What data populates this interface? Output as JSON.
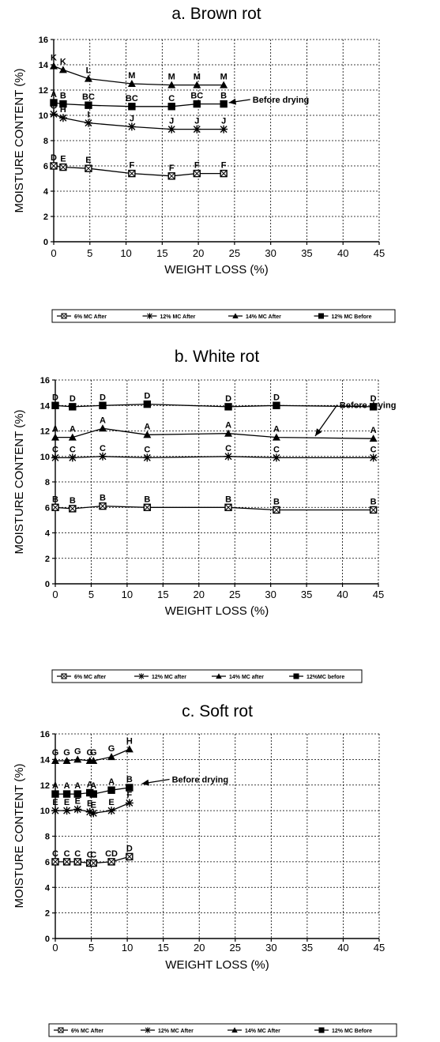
{
  "chart_data": [
    {
      "type": "line",
      "title": "a. Brown rot",
      "xlabel": "WEIGHT LOSS (%)",
      "ylabel": "MOISTURE CONTENT (%)",
      "xlim": [
        0,
        45
      ],
      "ylim": [
        0,
        16
      ],
      "xticks": [
        0,
        5,
        10,
        15,
        20,
        25,
        30,
        35,
        40,
        45
      ],
      "yticks": [
        0,
        2,
        4,
        6,
        8,
        10,
        12,
        14,
        16
      ],
      "grid": true,
      "legend_placement": "bottom",
      "series": [
        {
          "name": "6% MC After",
          "marker": "square-x",
          "x": [
            0,
            1.3,
            4.8,
            10.8,
            16.3,
            19.8,
            23.5
          ],
          "y": [
            6.0,
            5.9,
            5.8,
            5.4,
            5.2,
            5.4,
            5.4
          ],
          "labels": [
            "D",
            "E",
            "E",
            "F",
            "F",
            "F",
            "F"
          ]
        },
        {
          "name": "12% MC After",
          "marker": "asterisk",
          "x": [
            0,
            1.3,
            4.8,
            10.8,
            16.3,
            19.8,
            23.5
          ],
          "y": [
            10.1,
            9.8,
            9.4,
            9.1,
            8.9,
            8.9,
            8.9
          ],
          "labels": [
            "G",
            "H",
            "I",
            "J",
            "J",
            "J",
            "J"
          ]
        },
        {
          "name": "14% MC After",
          "marker": "triangle",
          "x": [
            0,
            1.3,
            4.8,
            10.8,
            16.3,
            19.8,
            23.5
          ],
          "y": [
            13.9,
            13.6,
            12.9,
            12.5,
            12.4,
            12.4,
            12.4
          ],
          "labels": [
            "K",
            "K",
            "L",
            "M",
            "M",
            "M",
            "M"
          ]
        },
        {
          "name": "12% MC Before",
          "marker": "square",
          "x": [
            0,
            1.3,
            4.8,
            10.8,
            16.3,
            19.8,
            23.5
          ],
          "y": [
            11.0,
            10.9,
            10.8,
            10.7,
            10.7,
            10.9,
            10.9
          ],
          "labels": [
            "A",
            "B",
            "BC",
            "BC",
            "C",
            "BC",
            "B"
          ]
        }
      ],
      "annotations": [
        {
          "text": "Before drying",
          "x": 27.5,
          "y": 11.0,
          "arrow_to": [
            24.2,
            11.0
          ]
        }
      ]
    },
    {
      "type": "line",
      "title": "b. White rot",
      "xlabel": "WEIGHT LOSS (%)",
      "ylabel": "MOISTURE CONTENT (%)",
      "xlim": [
        0,
        45
      ],
      "ylim": [
        0,
        16
      ],
      "xticks": [
        0,
        5,
        10,
        15,
        20,
        25,
        30,
        35,
        40,
        45
      ],
      "yticks": [
        0,
        2,
        4,
        6,
        8,
        10,
        12,
        14,
        16
      ],
      "grid": true,
      "legend_placement": "bottom",
      "series": [
        {
          "name": "6% MC after",
          "marker": "square-x",
          "x": [
            0,
            2.4,
            6.6,
            12.8,
            24.1,
            30.8,
            44.3
          ],
          "y": [
            6.0,
            5.9,
            6.1,
            6.0,
            6.0,
            5.8,
            5.8
          ],
          "labels": [
            "B",
            "B",
            "B",
            "B",
            "B",
            "B",
            "B"
          ]
        },
        {
          "name": "12% MC after",
          "marker": "asterisk",
          "x": [
            0,
            2.4,
            6.6,
            12.8,
            24.1,
            30.8,
            44.3
          ],
          "y": [
            9.9,
            9.9,
            10.0,
            9.9,
            10.0,
            9.9,
            9.9
          ],
          "labels": [
            "C",
            "C",
            "C",
            "C",
            "C",
            "C",
            "C"
          ]
        },
        {
          "name": "14% MC after",
          "marker": "triangle",
          "x": [
            0,
            2.4,
            6.6,
            12.8,
            24.1,
            30.8,
            44.3
          ],
          "y": [
            11.5,
            11.5,
            12.2,
            11.7,
            11.8,
            11.5,
            11.4
          ],
          "labels": [
            "A",
            "A",
            "A",
            "A",
            "A",
            "A",
            "A"
          ]
        },
        {
          "name": "12%MC before",
          "marker": "square",
          "x": [
            0,
            2.4,
            6.6,
            12.8,
            24.1,
            30.8,
            44.3
          ],
          "y": [
            14.0,
            13.9,
            14.0,
            14.1,
            13.9,
            14.0,
            13.9
          ],
          "labels": [
            "D",
            "D",
            "D",
            "D",
            "D",
            "D",
            "D"
          ]
        }
      ],
      "annotations": [
        {
          "text": "Before drying",
          "x": 39.6,
          "y": 13.8,
          "arrow_to": [
            36.2,
            11.6
          ]
        }
      ]
    },
    {
      "type": "line",
      "title": "c. Soft rot",
      "xlabel": "WEIGHT LOSS (%)",
      "ylabel": "MOISTURE CONTENT (%)",
      "xlim": [
        0,
        45
      ],
      "ylim": [
        0,
        16
      ],
      "xticks": [
        0,
        5,
        10,
        15,
        20,
        25,
        30,
        35,
        40,
        45
      ],
      "yticks": [
        0,
        2,
        4,
        6,
        8,
        10,
        12,
        14,
        16
      ],
      "grid": true,
      "legend_placement": "bottom",
      "series": [
        {
          "name": "6% MC After",
          "marker": "square-x",
          "x": [
            0,
            1.6,
            3.1,
            4.8,
            5.3,
            7.8,
            10.3
          ],
          "y": [
            6.0,
            6.0,
            6.0,
            5.9,
            5.9,
            6.0,
            6.4
          ],
          "labels": [
            "C",
            "C",
            "C",
            "C",
            "C",
            "CD",
            "D"
          ]
        },
        {
          "name": "12% MC After",
          "marker": "asterisk",
          "x": [
            0,
            1.6,
            3.1,
            4.8,
            5.3,
            7.8,
            10.3
          ],
          "y": [
            10.0,
            10.0,
            10.1,
            9.9,
            9.8,
            10.0,
            10.6
          ],
          "labels": [
            "E",
            "E",
            "E",
            "E",
            "E",
            "E",
            "F"
          ]
        },
        {
          "name": "14% MC After",
          "marker": "triangle",
          "x": [
            0,
            1.6,
            3.1,
            4.8,
            5.3,
            7.8,
            10.3
          ],
          "y": [
            13.9,
            13.9,
            14.0,
            13.9,
            13.9,
            14.2,
            14.8
          ],
          "labels": [
            "G",
            "G",
            "G",
            "G",
            "G",
            "G",
            "H"
          ]
        },
        {
          "name": "12% MC Before",
          "marker": "square",
          "x": [
            0,
            1.6,
            3.1,
            4.8,
            5.3,
            7.8,
            10.3
          ],
          "y": [
            11.3,
            11.3,
            11.3,
            11.4,
            11.3,
            11.6,
            11.8
          ],
          "labels": [
            "A",
            "A",
            "A",
            "A",
            "A",
            "A",
            "B"
          ]
        }
      ],
      "annotations": [
        {
          "text": "Before drying",
          "x": 16.2,
          "y": 12.2,
          "arrow_to": [
            12.0,
            12.1
          ]
        }
      ]
    }
  ]
}
